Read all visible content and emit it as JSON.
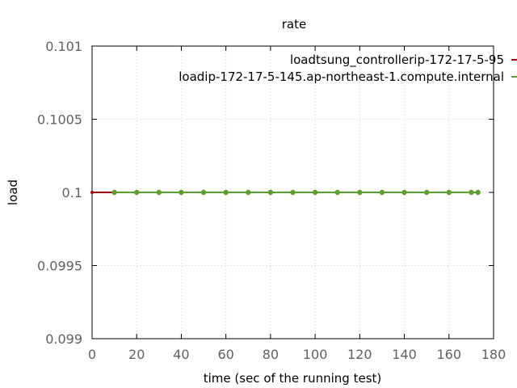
{
  "chart_data": {
    "type": "line",
    "title": "rate",
    "xlabel": "time (sec of the running test)",
    "ylabel": "load",
    "xlim": [
      0,
      180
    ],
    "ylim": [
      0.099,
      0.101
    ],
    "x_ticks": [
      "0",
      "20",
      "40",
      "60",
      "80",
      "100",
      "120",
      "140",
      "160",
      "180"
    ],
    "y_ticks": [
      "0.101",
      "0.1005",
      "0.1",
      "0.0995",
      "0.099"
    ],
    "grid": true,
    "legend_position": "top-right",
    "series": [
      {
        "name": "load_tsung_controller_ip-172-17-5-95",
        "label_text": "loadtsung_controllerip-172-17-5-95",
        "color": "#a0000e",
        "x": [
          0,
          173
        ],
        "y": [
          0.1,
          0.1
        ]
      },
      {
        "name": "load_ip-172-17-5-145.ap-northeast-1.compute.internal",
        "label_text": "loadip-172-17-5-145.ap-northeast-1.compute.internal",
        "color": "#5aa02a",
        "x": [
          10,
          20,
          30,
          40,
          50,
          60,
          70,
          80,
          90,
          100,
          110,
          120,
          130,
          140,
          150,
          160,
          170,
          173
        ],
        "y": [
          0.1,
          0.1,
          0.1,
          0.1,
          0.1,
          0.1,
          0.1,
          0.1,
          0.1,
          0.1,
          0.1,
          0.1,
          0.1,
          0.1,
          0.1,
          0.1,
          0.1,
          0.1
        ]
      }
    ]
  }
}
